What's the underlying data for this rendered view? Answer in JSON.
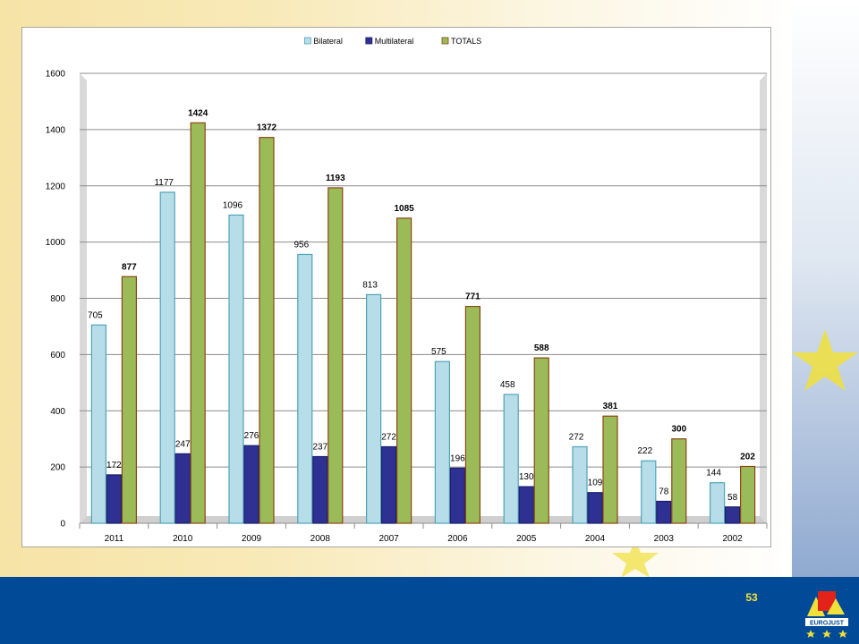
{
  "slide": {
    "number": "53"
  },
  "chart_data": {
    "type": "bar",
    "categories": [
      "2011",
      "2010",
      "2009",
      "2008",
      "2007",
      "2006",
      "2005",
      "2004",
      "2003",
      "2002"
    ],
    "series": [
      {
        "name": "Bilateral",
        "values": [
          705,
          1177,
          1096,
          956,
          813,
          575,
          458,
          272,
          222,
          144
        ],
        "color": "#b7dde8",
        "stroke": "#4ea4b8",
        "bold_labels": false
      },
      {
        "name": "Multilateral",
        "values": [
          172,
          247,
          276,
          237,
          272,
          196,
          130,
          109,
          78,
          58
        ],
        "color": "#2e3192",
        "stroke": "#1c1f6e",
        "bold_labels": false
      },
      {
        "name": "TOTALS",
        "values": [
          877,
          1424,
          1372,
          1193,
          1085,
          771,
          588,
          381,
          300,
          202
        ],
        "color": "#9bbb59",
        "stroke": "#8b4513",
        "bold_labels": true
      }
    ],
    "yticks": [
      "0",
      "200",
      "400",
      "600",
      "800",
      "1000",
      "1200",
      "1400",
      "1600"
    ],
    "ylim": [
      0,
      1600
    ],
    "grid": true,
    "legend_position": "top"
  },
  "branding": {
    "logo_text": "EUROJUST"
  }
}
